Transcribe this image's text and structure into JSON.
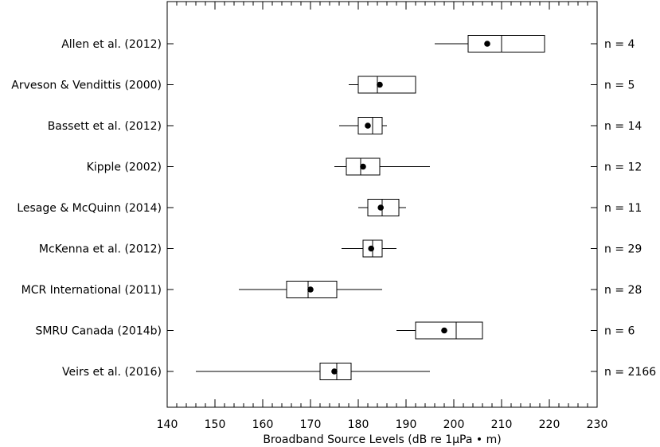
{
  "chart_data": {
    "type": "boxplot",
    "orientation": "horizontal",
    "xlabel": "Broadband Source Levels (dB re 1μPa • m)",
    "xlim": [
      140,
      230
    ],
    "x_major_ticks": [
      140,
      150,
      160,
      170,
      180,
      190,
      200,
      210,
      220,
      230
    ],
    "x_minor_step": 2,
    "grid": false,
    "studies": [
      {
        "label": "Allen et al. (2012)",
        "whisker_low": 196,
        "q1": 203,
        "median": 210,
        "q3": 219,
        "whisker_high": 219,
        "mean": 207,
        "n": "n = 4"
      },
      {
        "label": "Arveson & Vendittis (2000)",
        "whisker_low": 178,
        "q1": 180,
        "median": 184,
        "q3": 192,
        "whisker_high": 192,
        "mean": 184.5,
        "n": "n = 5"
      },
      {
        "label": "Bassett et al. (2012)",
        "whisker_low": 176,
        "q1": 180,
        "median": 183,
        "q3": 185,
        "whisker_high": 186,
        "mean": 182,
        "n": "n = 14"
      },
      {
        "label": "Kipple (2002)",
        "whisker_low": 175,
        "q1": 177.5,
        "median": 180.5,
        "q3": 184.5,
        "whisker_high": 195,
        "mean": 181,
        "n": "n = 12"
      },
      {
        "label": "Lesage & McQuinn (2014)",
        "whisker_low": 180,
        "q1": 182,
        "median": 185,
        "q3": 188.5,
        "whisker_high": 190,
        "mean": 184.7,
        "n": "n = 11"
      },
      {
        "label": "McKenna et al. (2012)",
        "whisker_low": 176.5,
        "q1": 181,
        "median": 183,
        "q3": 185,
        "whisker_high": 188,
        "mean": 182.7,
        "n": "n = 29"
      },
      {
        "label": "MCR International (2011)",
        "whisker_low": 155,
        "q1": 165,
        "median": 169.5,
        "q3": 175.5,
        "whisker_high": 185,
        "mean": 170,
        "n": "n = 28"
      },
      {
        "label": "SMRU Canada (2014b)",
        "whisker_low": 188,
        "q1": 192,
        "median": 200.5,
        "q3": 206,
        "whisker_high": 206,
        "mean": 198,
        "n": "n = 6"
      },
      {
        "label": "Veirs et al. (2016)",
        "whisker_low": 146,
        "q1": 172,
        "median": 175.5,
        "q3": 178.5,
        "whisker_high": 195,
        "mean": 175,
        "n": "n = 2166"
      }
    ]
  }
}
